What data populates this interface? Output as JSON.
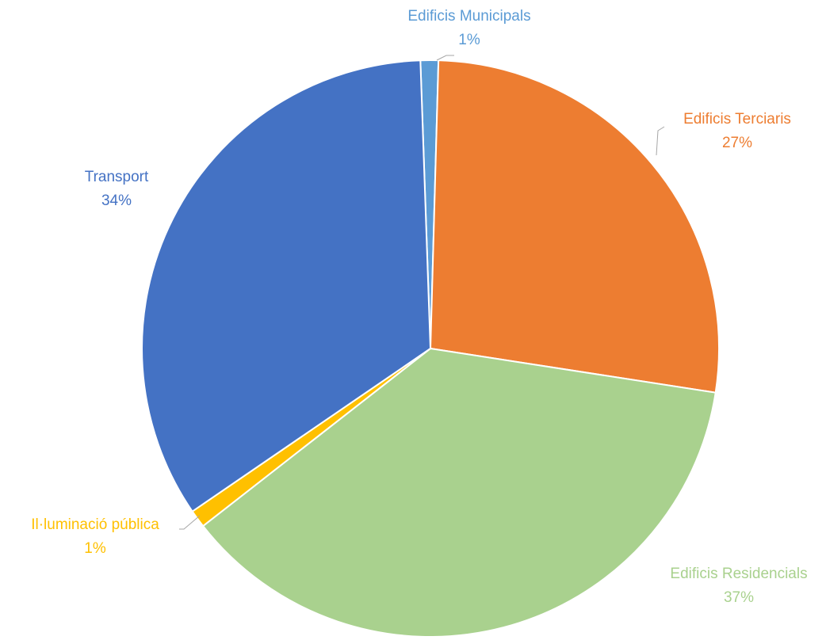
{
  "chart_data": {
    "type": "pie",
    "title": "",
    "slices": [
      {
        "label": "Edificis Municipals",
        "value": 1,
        "value_label": "1%",
        "color": "#5B9BD5"
      },
      {
        "label": "Edificis Terciaris",
        "value": 27,
        "value_label": "27%",
        "color": "#ED7D31"
      },
      {
        "label": "Edificis Residencials",
        "value": 37,
        "value_label": "37%",
        "color": "#A9D18E"
      },
      {
        "label": "Il·luminació pública",
        "value": 1,
        "value_label": "1%",
        "color": "#FFC000"
      },
      {
        "label": "Transport",
        "value": 34,
        "value_label": "34%",
        "color": "#4472C4"
      }
    ],
    "start_angle_deg": -2.0,
    "direction": "clockwise",
    "slice_border_color": "#ffffff",
    "data_labels": "outside with leader lines",
    "legend": "none"
  }
}
